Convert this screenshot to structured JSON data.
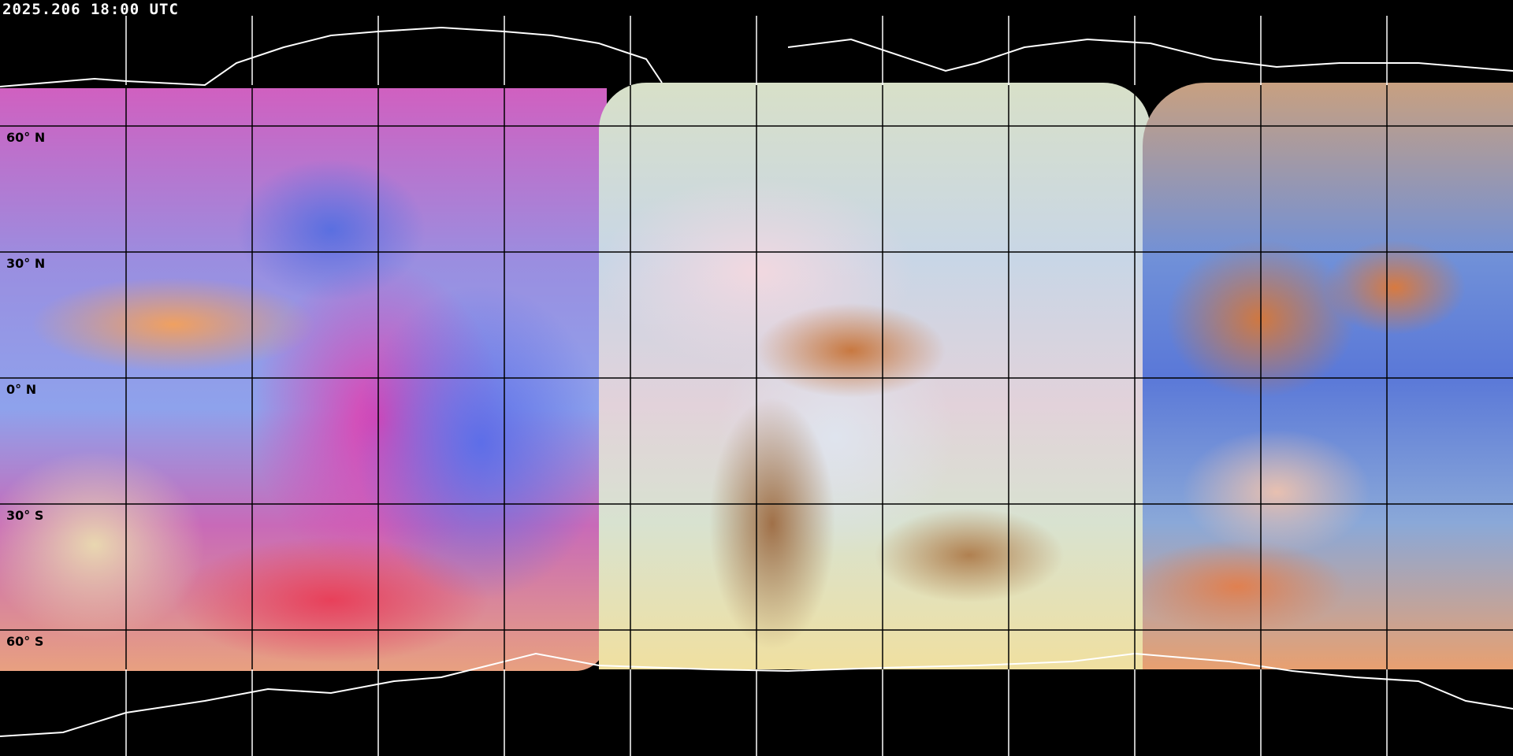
{
  "timestamp": "2025.206 18:00 UTC",
  "latitude_labels": [
    "60° N",
    "30° N",
    "0° N",
    "30° S",
    "60° S"
  ],
  "colors": {
    "background": "#000000",
    "grid_over_imagery": "#000000",
    "grid_over_space": "#ffffff",
    "coastline_polar": "#ffffff",
    "label_text": "#000000",
    "timestamp_text": "#ffffff"
  }
}
